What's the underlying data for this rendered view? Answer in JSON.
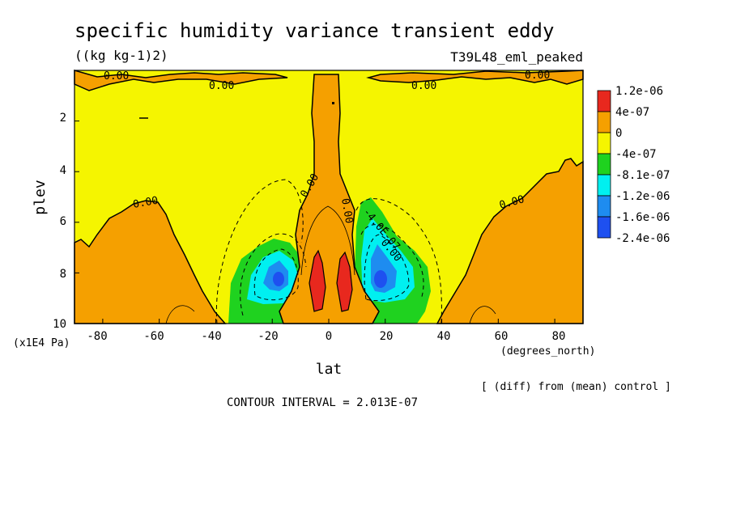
{
  "chart_data": {
    "type": "contour",
    "title": "specific humidity variance transient eddy",
    "units": "((kg kg-1)2)",
    "run": "T39L48_eml_peaked",
    "xlabel": "lat",
    "xunits": "(degrees_north)",
    "ylabel": "plev",
    "yunits": "(x1E4 Pa)",
    "xlim": [
      -90,
      90
    ],
    "ylim": [
      10,
      0
    ],
    "x_ticks": [
      "-80",
      "-60",
      "-40",
      "-20",
      "0",
      "20",
      "40",
      "60",
      "80"
    ],
    "y_ticks": [
      "2",
      "4",
      "6",
      "8",
      "10"
    ],
    "note": "[ (diff) from (mean) control ]",
    "contour_interval": "CONTOUR INTERVAL = 2.013E-07",
    "legend": {
      "labels": [
        "1.2e-06",
        "4e-07",
        "0",
        "-4e-07",
        "-8.1e-07",
        "-1.2e-06",
        "-1.6e-06",
        "-2.4e-06"
      ],
      "colors": [
        "#e8281e",
        "#f5a000",
        "#f5f500",
        "#1fd21f",
        "#00f0f0",
        "#1e8cf0",
        "#1e50f0"
      ]
    },
    "contour_labels": [
      "0.00",
      "0.00",
      "0.00",
      "0.00",
      "0.00",
      "0.00",
      "0.00",
      "0.00",
      "0.00",
      "-4.0E-07"
    ]
  }
}
